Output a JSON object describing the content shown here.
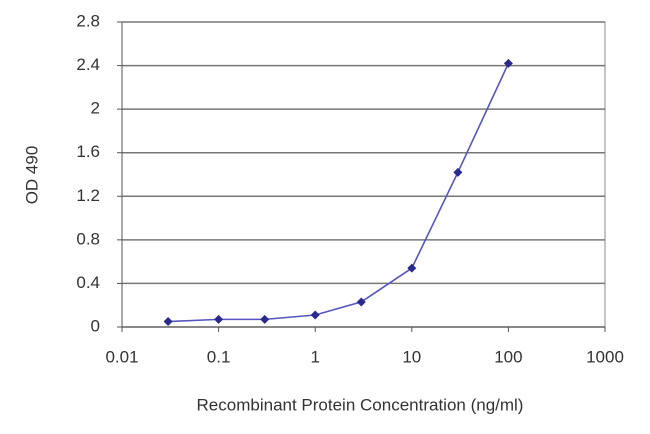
{
  "chart_data": {
    "type": "line",
    "x_label": "Recombinant Protein Concentration (ng/ml)",
    "y_label": "OD 490",
    "x": [
      0.03,
      0.1,
      0.3,
      1,
      3,
      10,
      30,
      100
    ],
    "values": [
      0.05,
      0.07,
      0.07,
      0.11,
      0.23,
      0.54,
      1.42,
      2.42
    ],
    "color": "#2a2a8c",
    "xlim": [
      0.01,
      1000
    ],
    "xticks": [
      0.01,
      0.1,
      1,
      10,
      100,
      1000
    ],
    "x_log": true,
    "ylim": [
      0,
      2.8
    ],
    "yticks": [
      0,
      0.4,
      0.8,
      1.2,
      1.6,
      2,
      2.4,
      2.8
    ],
    "grid": true
  }
}
